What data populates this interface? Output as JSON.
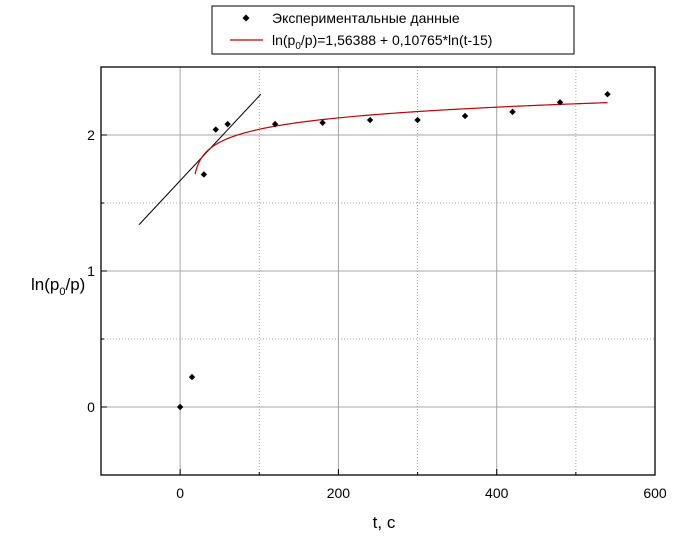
{
  "chart_data": {
    "type": "scatter",
    "xlabel": "t, c",
    "ylabel": {
      "main": "ln(p",
      "sub": "0",
      "tail": "/p)"
    },
    "xlim": [
      -100,
      600
    ],
    "ylim": [
      -0.5,
      2.5
    ],
    "x_ticks": [
      0,
      200,
      400,
      600
    ],
    "y_ticks": [
      0,
      1,
      2
    ],
    "grid": "major solid, minor dotted",
    "legend_position": "top-center",
    "series": [
      {
        "name": "Экспериментальные данные",
        "kind": "points",
        "color": "#000000",
        "x": [
          0,
          15,
          30,
          45,
          60,
          120,
          180,
          240,
          300,
          360,
          420,
          480,
          540
        ],
        "y": [
          0.0,
          0.22,
          1.71,
          2.04,
          2.08,
          2.08,
          2.09,
          2.11,
          2.11,
          2.14,
          2.17,
          2.24,
          2.3
        ]
      },
      {
        "name": {
          "main": "ln(p",
          "sub": "0",
          "tail": "/p)=1,56388 + 0,10765*ln(t-15)"
        },
        "kind": "fit",
        "color": "#c00000",
        "intercept": 1.56388,
        "slope": 0.10765,
        "shift": 15,
        "x_range": [
          19,
          540
        ]
      },
      {
        "kind": "tangent-line",
        "color": "#000000",
        "x": [
          -52,
          102
        ],
        "y": [
          1.34,
          2.3
        ]
      }
    ]
  }
}
